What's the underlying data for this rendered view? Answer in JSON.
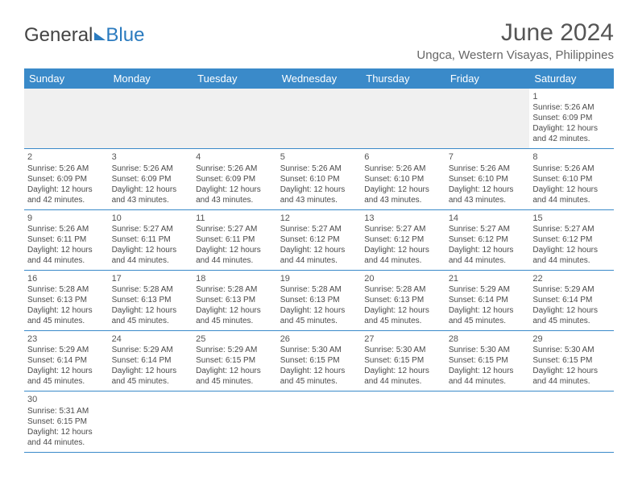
{
  "brand": {
    "part1": "General",
    "part2": "Blue"
  },
  "title": "June 2024",
  "location": "Ungca, Western Visayas, Philippines",
  "weekdays": [
    "Sunday",
    "Monday",
    "Tuesday",
    "Wednesday",
    "Thursday",
    "Friday",
    "Saturday"
  ],
  "colors": {
    "header_bg": "#3a8ac9",
    "header_text": "#ffffff",
    "row_border": "#3a8ac9",
    "blank_row_bg": "#f0f0f0",
    "title_color": "#555555",
    "text_color": "#4a4a4a",
    "brand_blue": "#2b7bbf"
  },
  "typography": {
    "title_fontsize": 30,
    "location_fontsize": 15,
    "weekday_fontsize": 13,
    "cell_fontsize": 10,
    "daynum_fontsize": 11
  },
  "calendar": {
    "type": "table",
    "cols": 7,
    "rows": 6,
    "cells": [
      [
        null,
        null,
        null,
        null,
        null,
        null,
        {
          "d": "1",
          "sr": "5:26 AM",
          "ss": "6:09 PM",
          "dl": "12 hours and 42 minutes."
        }
      ],
      [
        {
          "d": "2",
          "sr": "5:26 AM",
          "ss": "6:09 PM",
          "dl": "12 hours and 42 minutes."
        },
        {
          "d": "3",
          "sr": "5:26 AM",
          "ss": "6:09 PM",
          "dl": "12 hours and 43 minutes."
        },
        {
          "d": "4",
          "sr": "5:26 AM",
          "ss": "6:09 PM",
          "dl": "12 hours and 43 minutes."
        },
        {
          "d": "5",
          "sr": "5:26 AM",
          "ss": "6:10 PM",
          "dl": "12 hours and 43 minutes."
        },
        {
          "d": "6",
          "sr": "5:26 AM",
          "ss": "6:10 PM",
          "dl": "12 hours and 43 minutes."
        },
        {
          "d": "7",
          "sr": "5:26 AM",
          "ss": "6:10 PM",
          "dl": "12 hours and 43 minutes."
        },
        {
          "d": "8",
          "sr": "5:26 AM",
          "ss": "6:10 PM",
          "dl": "12 hours and 44 minutes."
        }
      ],
      [
        {
          "d": "9",
          "sr": "5:26 AM",
          "ss": "6:11 PM",
          "dl": "12 hours and 44 minutes."
        },
        {
          "d": "10",
          "sr": "5:27 AM",
          "ss": "6:11 PM",
          "dl": "12 hours and 44 minutes."
        },
        {
          "d": "11",
          "sr": "5:27 AM",
          "ss": "6:11 PM",
          "dl": "12 hours and 44 minutes."
        },
        {
          "d": "12",
          "sr": "5:27 AM",
          "ss": "6:12 PM",
          "dl": "12 hours and 44 minutes."
        },
        {
          "d": "13",
          "sr": "5:27 AM",
          "ss": "6:12 PM",
          "dl": "12 hours and 44 minutes."
        },
        {
          "d": "14",
          "sr": "5:27 AM",
          "ss": "6:12 PM",
          "dl": "12 hours and 44 minutes."
        },
        {
          "d": "15",
          "sr": "5:27 AM",
          "ss": "6:12 PM",
          "dl": "12 hours and 44 minutes."
        }
      ],
      [
        {
          "d": "16",
          "sr": "5:28 AM",
          "ss": "6:13 PM",
          "dl": "12 hours and 45 minutes."
        },
        {
          "d": "17",
          "sr": "5:28 AM",
          "ss": "6:13 PM",
          "dl": "12 hours and 45 minutes."
        },
        {
          "d": "18",
          "sr": "5:28 AM",
          "ss": "6:13 PM",
          "dl": "12 hours and 45 minutes."
        },
        {
          "d": "19",
          "sr": "5:28 AM",
          "ss": "6:13 PM",
          "dl": "12 hours and 45 minutes."
        },
        {
          "d": "20",
          "sr": "5:28 AM",
          "ss": "6:13 PM",
          "dl": "12 hours and 45 minutes."
        },
        {
          "d": "21",
          "sr": "5:29 AM",
          "ss": "6:14 PM",
          "dl": "12 hours and 45 minutes."
        },
        {
          "d": "22",
          "sr": "5:29 AM",
          "ss": "6:14 PM",
          "dl": "12 hours and 45 minutes."
        }
      ],
      [
        {
          "d": "23",
          "sr": "5:29 AM",
          "ss": "6:14 PM",
          "dl": "12 hours and 45 minutes."
        },
        {
          "d": "24",
          "sr": "5:29 AM",
          "ss": "6:14 PM",
          "dl": "12 hours and 45 minutes."
        },
        {
          "d": "25",
          "sr": "5:29 AM",
          "ss": "6:15 PM",
          "dl": "12 hours and 45 minutes."
        },
        {
          "d": "26",
          "sr": "5:30 AM",
          "ss": "6:15 PM",
          "dl": "12 hours and 45 minutes."
        },
        {
          "d": "27",
          "sr": "5:30 AM",
          "ss": "6:15 PM",
          "dl": "12 hours and 44 minutes."
        },
        {
          "d": "28",
          "sr": "5:30 AM",
          "ss": "6:15 PM",
          "dl": "12 hours and 44 minutes."
        },
        {
          "d": "29",
          "sr": "5:30 AM",
          "ss": "6:15 PM",
          "dl": "12 hours and 44 minutes."
        }
      ],
      [
        {
          "d": "30",
          "sr": "5:31 AM",
          "ss": "6:15 PM",
          "dl": "12 hours and 44 minutes."
        },
        null,
        null,
        null,
        null,
        null,
        null
      ]
    ]
  },
  "labels": {
    "sunrise": "Sunrise:",
    "sunset": "Sunset:",
    "daylight": "Daylight:"
  }
}
